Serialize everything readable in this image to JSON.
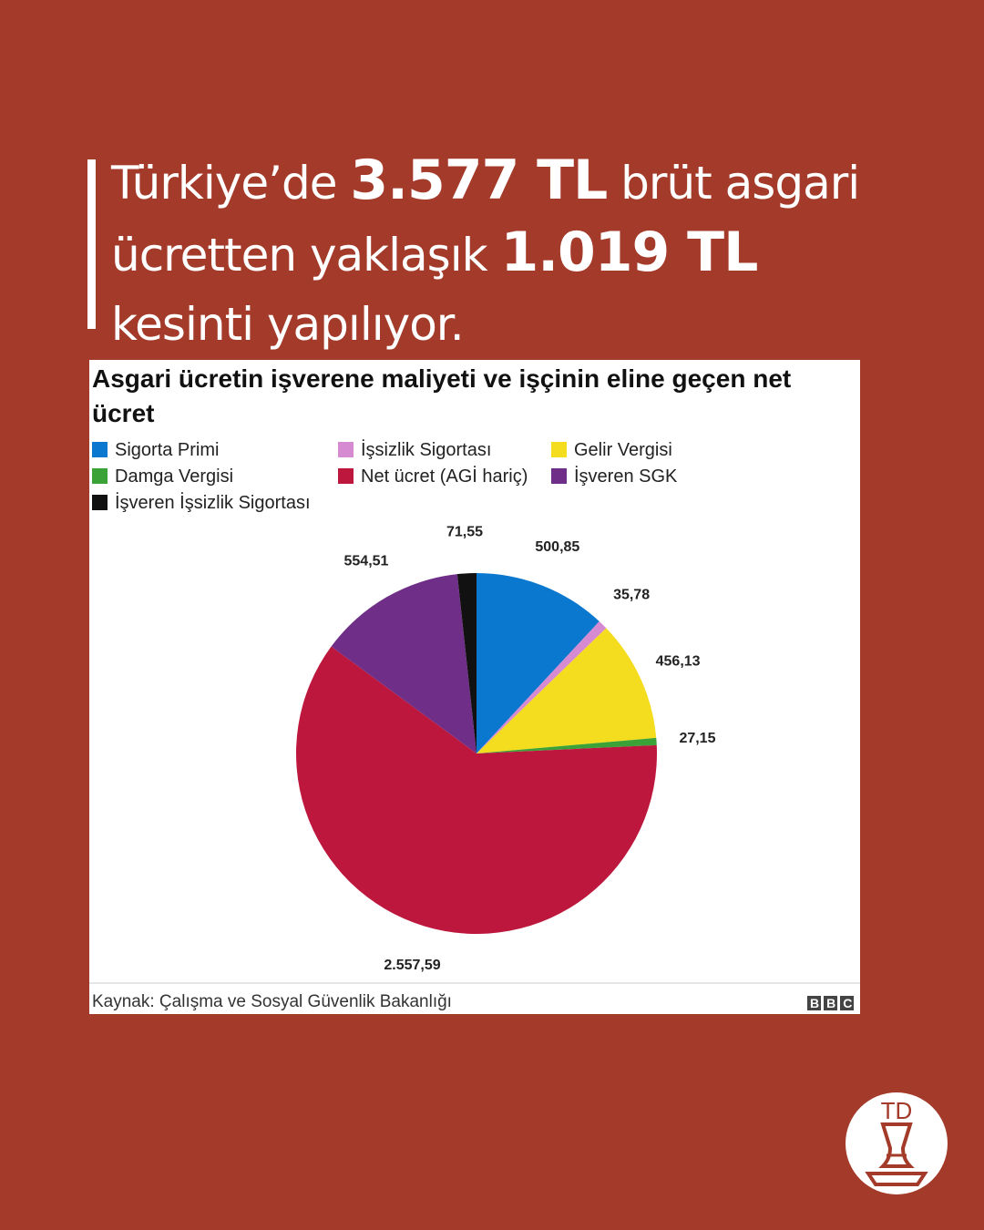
{
  "headline": {
    "lines": [
      [
        {
          "text": "Türkiye’de ",
          "bold": false
        },
        {
          "text": "3.577 TL",
          "bold": true
        },
        {
          "text": " brüt asgari",
          "bold": false
        }
      ],
      [
        {
          "text": "ücretten yaklaşık ",
          "bold": false
        },
        {
          "text": "1.019 TL",
          "bold": true
        }
      ],
      [
        {
          "text": "kesinti yapılıyor.",
          "bold": false
        }
      ]
    ]
  },
  "chart_data": {
    "type": "pie",
    "title": "Asgari ücretin işverene maliyeti ve işçinin eline geçen net ücret",
    "categories": [
      "Sigorta Primi",
      "İşsizlik Sigortası",
      "Gelir Vergisi",
      "Damga Vergisi",
      "Net ücret (AGİ hariç)",
      "İşveren SGK",
      "İşveren İşsizlik Sigortası"
    ],
    "values": [
      500.85,
      35.78,
      456.13,
      27.15,
      2557.59,
      554.51,
      71.55
    ],
    "value_labels": [
      "500,85",
      "35,78",
      "456,13",
      "27,15",
      "2.557,59",
      "554,51",
      "71,55"
    ],
    "colors": [
      "#0b78d0",
      "#d68ad2",
      "#f4dc1f",
      "#3aa236",
      "#bd173d",
      "#6f2f88",
      "#111111"
    ],
    "source": "Kaynak: Çalışma ve Sosyal Güvenlik Bakanlığı",
    "logo": "BBC"
  },
  "brand": "TD"
}
